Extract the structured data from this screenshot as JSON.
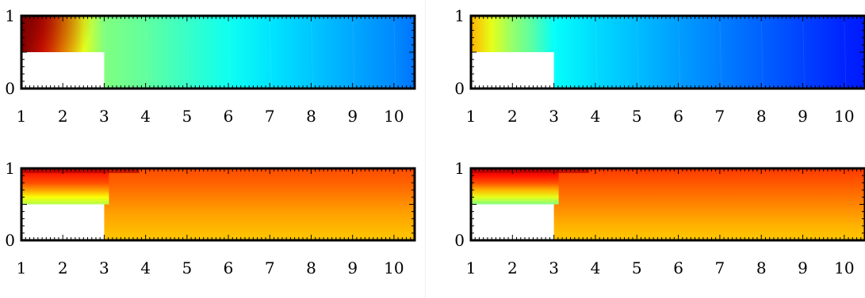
{
  "chart_data": [
    {
      "type": "heatmap",
      "panel": "top-left",
      "xlim": [
        1,
        10.5
      ],
      "ylim": [
        0,
        1
      ],
      "x_ticks": [
        "1",
        "2",
        "3",
        "4",
        "5",
        "6",
        "7",
        "8",
        "9",
        "10"
      ],
      "y_ticks": [
        "0",
        "1"
      ],
      "obstacle": {
        "x": [
          1,
          3
        ],
        "y": [
          0,
          0.5
        ]
      },
      "inlet_hot": true,
      "x": [
        1,
        1.5,
        2,
        2.5,
        3,
        4,
        5,
        6,
        7,
        8,
        9,
        10,
        10.5
      ],
      "values": [
        1.0,
        0.85,
        0.72,
        0.6,
        0.5,
        0.47,
        0.43,
        0.39,
        0.35,
        0.32,
        0.29,
        0.26,
        0.24
      ],
      "colormap": "jet",
      "grid": false
    },
    {
      "type": "heatmap",
      "panel": "top-right",
      "xlim": [
        1,
        10.5
      ],
      "ylim": [
        0,
        1
      ],
      "x_ticks": [
        "1",
        "2",
        "3",
        "4",
        "5",
        "6",
        "7",
        "8",
        "9",
        "10"
      ],
      "y_ticks": [
        "0",
        "1"
      ],
      "obstacle": {
        "x": [
          1,
          3
        ],
        "y": [
          0,
          0.5
        ]
      },
      "x": [
        1,
        1.5,
        2,
        2.5,
        3,
        4,
        5,
        6,
        7,
        8,
        9,
        10,
        10.5
      ],
      "values": [
        0.7,
        0.6,
        0.52,
        0.46,
        0.38,
        0.34,
        0.31,
        0.28,
        0.25,
        0.22,
        0.19,
        0.16,
        0.15
      ],
      "colormap": "jet",
      "grid": false
    },
    {
      "type": "heatmap",
      "panel": "bottom-left",
      "xlim": [
        1,
        10.5
      ],
      "ylim": [
        0,
        1
      ],
      "x_ticks": [
        "1",
        "2",
        "3",
        "4",
        "5",
        "6",
        "7",
        "8",
        "9",
        "10"
      ],
      "y_ticks": [
        "0",
        "1"
      ],
      "obstacle": {
        "x": [
          1,
          3
        ],
        "y": [
          0,
          0.5
        ]
      },
      "y": [
        0.5,
        0.6,
        0.7,
        0.8,
        0.9,
        1.0
      ],
      "values": [
        0.55,
        0.62,
        0.72,
        0.8,
        0.84,
        0.9
      ],
      "downstream_y": [
        0,
        0.2,
        0.4,
        0.6,
        0.8,
        1.0
      ],
      "downstream_values": [
        0.68,
        0.7,
        0.72,
        0.75,
        0.78,
        0.8
      ],
      "colormap": "jet",
      "grid": false
    },
    {
      "type": "heatmap",
      "panel": "bottom-right",
      "xlim": [
        1,
        10.5
      ],
      "ylim": [
        0,
        1
      ],
      "x_ticks": [
        "1",
        "2",
        "3",
        "4",
        "5",
        "6",
        "7",
        "8",
        "9",
        "10"
      ],
      "y_ticks": [
        "0",
        "1"
      ],
      "obstacle": {
        "x": [
          1,
          3
        ],
        "y": [
          0,
          0.5
        ]
      },
      "y": [
        0.5,
        0.6,
        0.7,
        0.8,
        0.9,
        1.0
      ],
      "values": [
        0.5,
        0.6,
        0.7,
        0.8,
        0.86,
        0.92
      ],
      "downstream_y": [
        0,
        0.2,
        0.4,
        0.6,
        0.8,
        1.0
      ],
      "downstream_values": [
        0.68,
        0.7,
        0.73,
        0.76,
        0.79,
        0.82
      ],
      "colormap": "jet",
      "grid": false
    }
  ]
}
